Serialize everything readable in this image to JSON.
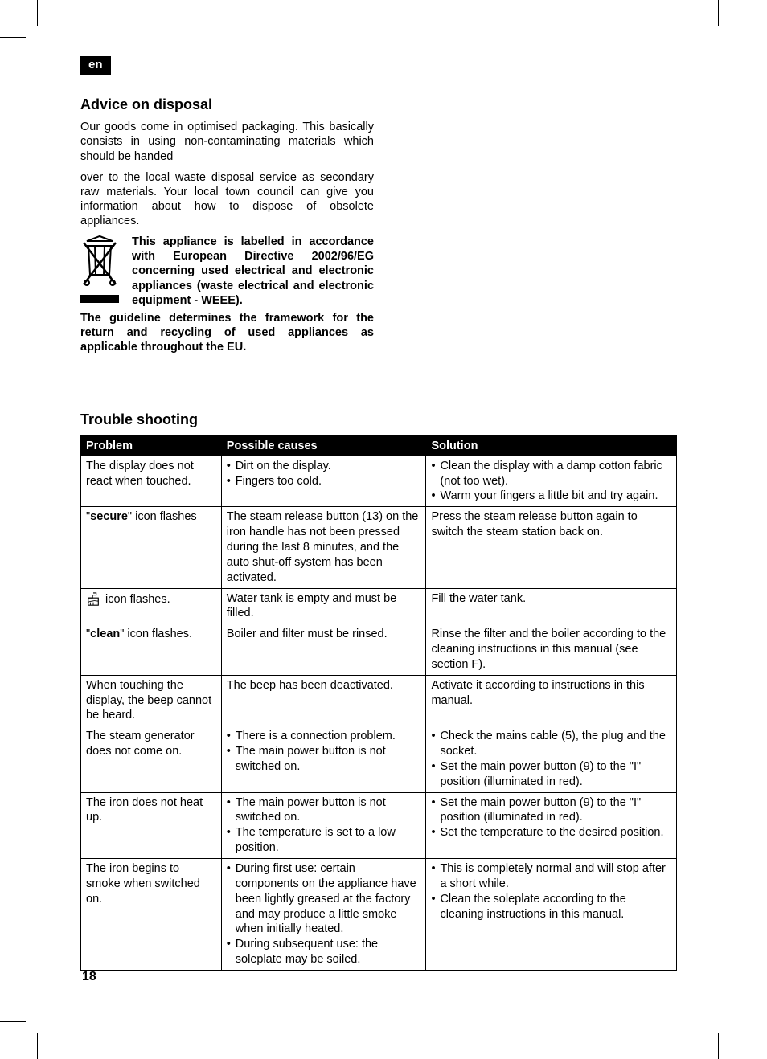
{
  "lang_badge": "en",
  "page_number": "18",
  "section_disposal": {
    "heading": "Advice on disposal",
    "para1": "Our goods come in optimised packaging. This basically consists in using non-contaminating materials which should be handed",
    "para2": "over to the local waste disposal service as secondary raw materials. Your local town council can give you information about how to dispose of obsolete appliances.",
    "weee_text": "This appliance is labelled in accordance with European Directive 2002/96/EG concerning used electrical and electronic appliances (waste electrical and electronic equipment - WEEE).",
    "guideline_text": "The guideline determines the framework for the return and  recycling of used appliances as applicable throughout the EU."
  },
  "section_trouble": {
    "heading": "Trouble shooting",
    "headers": {
      "problem": "Problem",
      "causes": "Possible causes",
      "solution": "Solution"
    },
    "rows": [
      {
        "problem": "The display does not react when touched.",
        "causes_list": [
          "Dirt on the display.",
          "Fingers too cold."
        ],
        "solution_list": [
          "Clean the display with a damp cotton fabric (not too wet).",
          "Warm your fingers a little bit and try again."
        ]
      },
      {
        "problem_html": "\"<b>secure</b>\" icon flashes",
        "causes": "The steam release button (13) on the iron handle has not been pressed during the last 8 minutes, and the auto shut-off system has been activated.",
        "solution": "Press the steam release button again to switch the steam station back on."
      },
      {
        "problem_icon": true,
        "problem_suffix": " icon flashes.",
        "causes": "Water tank is empty and must be filled.",
        "solution": "Fill the water tank."
      },
      {
        "problem_html": "\"<b>clean</b>\" icon flashes.",
        "causes": "Boiler and filter must be rinsed.",
        "solution": "Rinse the filter and the boiler according to the cleaning instructions in this manual (see section F)."
      },
      {
        "problem": "When touching the display, the beep cannot be heard.",
        "causes": "The beep has been deactivated.",
        "solution": "Activate it according to instructions in this manual."
      },
      {
        "problem": "The steam generator does not come on.",
        "causes_list": [
          "There is a connection problem.",
          "The main power button is not switched on."
        ],
        "solution_list": [
          "Check the mains cable (5), the plug and the socket.",
          "Set the main power button (9) to the \"I\" position (illuminated in red)."
        ]
      },
      {
        "problem": "The iron does not heat up.",
        "causes_list": [
          "The main power button is not switched on.",
          "The temperature is set to a low position."
        ],
        "solution_list": [
          "Set the main power button (9) to the \"I\" position (illuminated in red).",
          "Set the temperature to the desired position."
        ]
      },
      {
        "problem": "The iron begins to smoke when switched on.",
        "causes_list": [
          "During first use: certain components on the appliance have been lightly greased at the factory and may produce a little smoke when initially heated.",
          "During subsequent use: the soleplate may be soiled."
        ],
        "solution_list": [
          "This is completely normal and will stop after a short while.",
          "Clean the soleplate according to the cleaning instructions in this manual."
        ]
      }
    ]
  }
}
